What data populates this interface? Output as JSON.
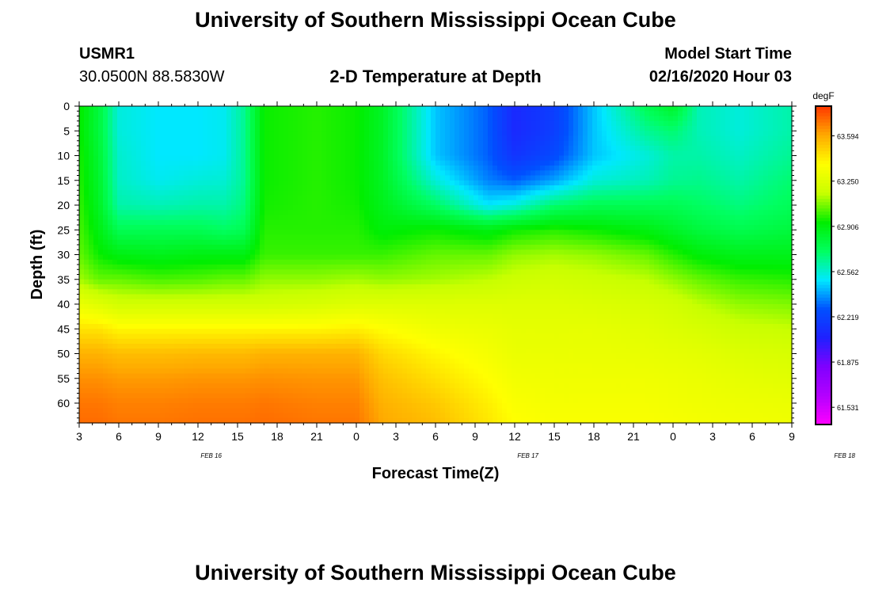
{
  "page": {
    "title_top": "University of Southern Mississippi Ocean Cube",
    "title_bottom": "University of Southern Mississippi Ocean Cube",
    "station_id": "USMR1",
    "station_coords": "30.0500N 88.5830W",
    "model_start_label": "Model Start Time",
    "model_start_value": "02/16/2020 Hour 03"
  },
  "chart_data": {
    "type": "heatmap",
    "title": "2-D Temperature at Depth",
    "xlabel": "Forecast Time(Z)",
    "ylabel": "Depth (ft)",
    "x_tick_labels": [
      "3",
      "6",
      "9",
      "12",
      "15",
      "18",
      "21",
      "0",
      "3",
      "6",
      "9",
      "12",
      "15",
      "18",
      "21",
      "0",
      "3",
      "6",
      "9"
    ],
    "x_date_labels": [
      "FEB 16",
      "FEB 17",
      "FEB 18"
    ],
    "x_date_label_hours": [
      13,
      37,
      61
    ],
    "x_range_hours": [
      3,
      57
    ],
    "x_grid_hours": [
      3,
      6,
      9,
      12,
      15,
      18,
      21,
      24,
      27,
      30,
      33,
      36,
      39,
      42,
      45,
      48,
      51,
      54,
      57
    ],
    "y_ticks": [
      0,
      5,
      10,
      15,
      20,
      25,
      30,
      35,
      40,
      45,
      50,
      55,
      60
    ],
    "y_range": [
      0,
      64
    ],
    "y_reversed": true,
    "colorbar": {
      "unit": "degF",
      "range": [
        61.4,
        63.82
      ],
      "labels": [
        "63.594",
        "63.250",
        "62.906",
        "62.562",
        "62.219",
        "61.875",
        "61.531"
      ],
      "label_values": [
        63.594,
        63.25,
        62.906,
        62.562,
        62.219,
        61.875,
        61.531
      ],
      "colormap": [
        "#ff00ff",
        "#b400ff",
        "#8000ff",
        "#2020ff",
        "#0050ff",
        "#00e8ff",
        "#00ff60",
        "#00ee00",
        "#c8ff00",
        "#ffff00",
        "#ffaa00",
        "#ff3800"
      ]
    },
    "depths": [
      0,
      5,
      10,
      15,
      20,
      25,
      30,
      35,
      40,
      45,
      50,
      55,
      60,
      64
    ],
    "columns": [
      {
        "hour": 3,
        "temps": [
          62.95,
          62.95,
          62.97,
          62.98,
          63.0,
          63.02,
          63.05,
          63.12,
          63.3,
          63.45,
          63.58,
          63.65,
          63.7,
          63.72
        ]
      },
      {
        "hour": 4.5,
        "temps": [
          62.8,
          62.8,
          62.82,
          62.84,
          62.86,
          62.9,
          62.95,
          63.05,
          63.25,
          63.45,
          63.58,
          63.65,
          63.7,
          63.72
        ]
      },
      {
        "hour": 6,
        "temps": [
          62.55,
          62.55,
          62.57,
          62.58,
          62.62,
          62.75,
          62.9,
          63.05,
          63.2,
          63.4,
          63.55,
          63.63,
          63.68,
          63.7
        ]
      },
      {
        "hour": 9,
        "temps": [
          62.5,
          62.5,
          62.5,
          62.52,
          62.6,
          62.75,
          62.88,
          63.02,
          63.2,
          63.4,
          63.55,
          63.63,
          63.68,
          63.7
        ]
      },
      {
        "hour": 12,
        "temps": [
          62.5,
          62.5,
          62.5,
          62.55,
          62.62,
          62.75,
          62.9,
          63.03,
          63.2,
          63.4,
          63.56,
          63.64,
          63.69,
          63.71
        ]
      },
      {
        "hour": 14,
        "temps": [
          62.52,
          62.52,
          62.52,
          62.56,
          62.62,
          62.72,
          62.9,
          63.05,
          63.2,
          63.4,
          63.56,
          63.64,
          63.69,
          63.71
        ]
      },
      {
        "hour": 15.5,
        "temps": [
          62.65,
          62.65,
          62.65,
          62.65,
          62.68,
          62.75,
          62.9,
          63.05,
          63.2,
          63.4,
          63.56,
          63.64,
          63.69,
          63.71
        ]
      },
      {
        "hour": 17,
        "temps": [
          62.95,
          62.95,
          62.95,
          62.95,
          62.96,
          62.98,
          63.0,
          63.1,
          63.2,
          63.4,
          63.58,
          63.65,
          63.7,
          63.72
        ]
      },
      {
        "hour": 21,
        "temps": [
          62.98,
          62.98,
          62.98,
          62.98,
          62.98,
          62.98,
          63.0,
          63.1,
          63.22,
          63.4,
          63.58,
          63.64,
          63.68,
          63.7
        ]
      },
      {
        "hour": 24,
        "temps": [
          62.95,
          62.95,
          62.95,
          62.95,
          62.96,
          62.98,
          63.0,
          63.12,
          63.25,
          63.42,
          63.58,
          63.64,
          63.68,
          63.7
        ]
      },
      {
        "hour": 26,
        "temps": [
          62.85,
          62.85,
          62.85,
          62.86,
          62.88,
          62.92,
          63.0,
          63.1,
          63.25,
          63.38,
          63.48,
          63.54,
          63.58,
          63.6
        ]
      },
      {
        "hour": 30,
        "temps": [
          62.45,
          62.45,
          62.45,
          62.55,
          62.72,
          62.95,
          63.05,
          63.12,
          63.25,
          63.32,
          63.4,
          63.46,
          63.52,
          63.55
        ]
      },
      {
        "hour": 34,
        "temps": [
          62.3,
          62.3,
          62.3,
          62.35,
          62.5,
          62.9,
          63.05,
          63.15,
          63.25,
          63.3,
          63.34,
          63.38,
          63.42,
          63.44
        ]
      },
      {
        "hour": 36,
        "temps": [
          62.1,
          62.1,
          62.15,
          62.3,
          62.55,
          62.95,
          63.1,
          63.18,
          63.25,
          63.28,
          63.3,
          63.33,
          63.36,
          63.38
        ]
      },
      {
        "hour": 39,
        "temps": [
          62.2,
          62.2,
          62.25,
          62.4,
          62.7,
          62.98,
          63.12,
          63.2,
          63.25,
          63.28,
          63.3,
          63.32,
          63.34,
          63.36
        ]
      },
      {
        "hour": 42,
        "temps": [
          62.45,
          62.45,
          62.45,
          62.55,
          62.75,
          62.95,
          63.1,
          63.18,
          63.24,
          63.28,
          63.3,
          63.32,
          63.34,
          63.36
        ]
      },
      {
        "hour": 46,
        "temps": [
          62.75,
          62.65,
          62.55,
          62.6,
          62.75,
          62.9,
          63.05,
          63.15,
          63.22,
          63.26,
          63.29,
          63.32,
          63.34,
          63.36
        ]
      },
      {
        "hour": 48,
        "temps": [
          62.85,
          62.7,
          62.62,
          62.65,
          62.75,
          62.85,
          62.98,
          63.1,
          63.2,
          63.24,
          63.28,
          63.31,
          63.33,
          63.35
        ]
      },
      {
        "hour": 50,
        "temps": [
          62.6,
          62.6,
          62.62,
          62.66,
          62.72,
          62.8,
          62.92,
          63.05,
          63.15,
          63.22,
          63.27,
          63.3,
          63.32,
          63.34
        ]
      },
      {
        "hour": 53,
        "temps": [
          62.55,
          62.55,
          62.58,
          62.62,
          62.68,
          62.76,
          62.88,
          63.0,
          63.1,
          63.18,
          63.24,
          63.28,
          63.31,
          63.33
        ]
      },
      {
        "hour": 57,
        "temps": [
          62.62,
          62.62,
          62.65,
          62.7,
          62.74,
          62.8,
          62.88,
          62.98,
          63.08,
          63.16,
          63.22,
          63.26,
          63.3,
          63.32
        ]
      }
    ]
  }
}
